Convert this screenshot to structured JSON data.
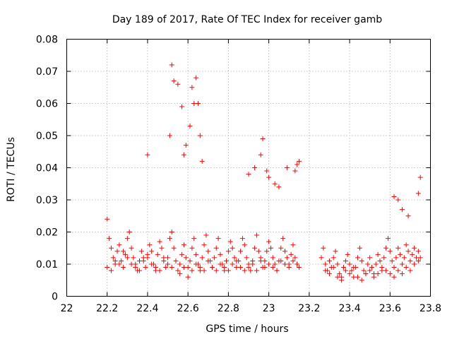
{
  "chart_data": {
    "type": "scatter",
    "title": "Day 189 of 2017, Rate Of TEC Index for receiver gamb",
    "xlabel": "GPS time / hours",
    "ylabel": "ROTI / TECUs",
    "xlim": [
      22,
      23.8
    ],
    "ylim": [
      0,
      0.08
    ],
    "x_ticks": [
      "22",
      "22.2",
      "22.4",
      "22.6",
      "22.8",
      "23",
      "23.2",
      "23.4",
      "23.6",
      "23.8"
    ],
    "y_ticks": [
      "0",
      "0.01",
      "0.02",
      "0.03",
      "0.04",
      "0.05",
      "0.06",
      "0.07",
      "0.08"
    ],
    "grid": true,
    "marker": "+",
    "series": [
      {
        "name": "ROTI",
        "color": "#ff0000",
        "x": [
          22.2,
          22.21,
          22.22,
          22.23,
          22.24,
          22.25,
          22.26,
          22.27,
          22.28,
          22.29,
          22.3,
          22.31,
          22.32,
          22.33,
          22.34,
          22.35,
          22.36,
          22.37,
          22.38,
          22.39,
          22.4,
          22.41,
          22.42,
          22.43,
          22.44,
          22.45,
          22.46,
          22.47,
          22.48,
          22.49,
          22.5,
          22.51,
          22.52,
          22.53,
          22.54,
          22.55,
          22.56,
          22.57,
          22.58,
          22.59,
          22.6,
          22.61,
          22.62,
          22.63,
          22.64,
          22.65,
          22.66,
          22.67,
          22.68,
          22.69,
          22.7,
          22.71,
          22.72,
          22.73,
          22.74,
          22.75,
          22.76,
          22.77,
          22.78,
          22.79,
          22.8,
          22.81,
          22.82,
          22.83,
          22.84,
          22.85,
          22.86,
          22.87,
          22.88,
          22.89,
          22.9,
          22.91,
          22.92,
          22.93,
          22.94,
          22.95,
          22.96,
          22.97,
          22.98,
          22.99,
          23.0,
          23.01,
          23.02,
          23.03,
          23.04,
          23.05,
          23.06,
          23.07,
          23.08,
          23.09,
          23.1,
          23.11,
          23.12,
          23.13,
          23.14,
          23.15,
          23.26,
          23.27,
          23.28,
          23.29,
          23.3,
          23.31,
          23.32,
          23.33,
          23.34,
          23.35,
          23.36,
          23.37,
          23.38,
          23.39,
          23.4,
          23.41,
          23.42,
          23.43,
          23.44,
          23.45,
          23.46,
          23.47,
          23.48,
          23.49,
          23.5,
          23.51,
          23.52,
          23.53,
          23.54,
          23.55,
          23.56,
          23.57,
          23.58,
          23.59,
          23.6,
          23.61,
          23.62,
          23.63,
          23.64,
          23.65,
          23.66,
          23.67,
          23.68,
          23.69,
          23.7,
          23.71,
          23.72,
          23.73,
          23.74,
          23.75,
          22.2,
          22.22,
          22.24,
          22.26,
          22.28,
          22.3,
          22.32,
          22.34,
          22.36,
          22.38,
          22.4,
          22.42,
          22.44,
          22.46,
          22.48,
          22.5,
          22.52,
          22.54,
          22.56,
          22.58,
          22.6,
          22.62,
          22.64,
          22.66,
          22.68,
          22.7,
          22.72,
          22.74,
          22.76,
          22.78,
          22.8,
          22.82,
          22.84,
          22.86,
          22.88,
          22.9,
          22.92,
          22.94,
          22.96,
          22.98,
          23.0,
          23.02,
          23.04,
          23.06,
          23.08,
          23.1,
          23.12,
          23.14,
          23.28,
          23.3,
          23.32,
          23.34,
          23.36,
          23.38,
          23.4,
          23.42,
          23.44,
          23.46,
          23.48,
          23.5,
          23.52,
          23.54,
          23.56,
          23.58,
          23.6,
          23.62,
          23.64,
          23.66,
          23.68,
          23.7,
          23.72,
          23.74,
          22.4,
          22.51,
          22.52,
          22.53,
          22.55,
          22.57,
          22.58,
          22.59,
          22.61,
          22.62,
          22.63,
          22.64,
          22.65,
          22.66,
          22.67,
          22.9,
          22.93,
          22.96,
          22.97,
          22.99,
          23.0,
          23.03,
          23.05,
          23.09,
          23.13,
          23.14,
          23.15,
          23.62,
          23.64,
          23.66,
          23.69,
          23.74,
          23.75
        ],
        "y": [
          0.024,
          0.018,
          0.015,
          0.012,
          0.01,
          0.014,
          0.016,
          0.011,
          0.009,
          0.013,
          0.018,
          0.02,
          0.015,
          0.012,
          0.01,
          0.008,
          0.011,
          0.014,
          0.012,
          0.009,
          0.012,
          0.016,
          0.014,
          0.01,
          0.008,
          0.013,
          0.017,
          0.015,
          0.011,
          0.009,
          0.012,
          0.018,
          0.02,
          0.015,
          0.011,
          0.008,
          0.01,
          0.013,
          0.016,
          0.012,
          0.009,
          0.011,
          0.015,
          0.018,
          0.013,
          0.01,
          0.008,
          0.012,
          0.016,
          0.019,
          0.014,
          0.011,
          0.009,
          0.012,
          0.015,
          0.018,
          0.013,
          0.01,
          0.008,
          0.011,
          0.014,
          0.017,
          0.015,
          0.012,
          0.009,
          0.011,
          0.014,
          0.018,
          0.016,
          0.012,
          0.01,
          0.008,
          0.011,
          0.015,
          0.019,
          0.014,
          0.012,
          0.009,
          0.011,
          0.014,
          0.017,
          0.015,
          0.012,
          0.01,
          0.008,
          0.011,
          0.015,
          0.018,
          0.014,
          0.012,
          0.01,
          0.013,
          0.016,
          0.012,
          0.01,
          0.009,
          0.012,
          0.015,
          0.01,
          0.008,
          0.011,
          0.009,
          0.012,
          0.014,
          0.01,
          0.007,
          0.006,
          0.009,
          0.011,
          0.013,
          0.01,
          0.008,
          0.006,
          0.009,
          0.012,
          0.015,
          0.011,
          0.008,
          0.007,
          0.01,
          0.012,
          0.009,
          0.007,
          0.01,
          0.013,
          0.011,
          0.008,
          0.012,
          0.015,
          0.018,
          0.014,
          0.011,
          0.009,
          0.012,
          0.015,
          0.013,
          0.01,
          0.012,
          0.016,
          0.014,
          0.011,
          0.013,
          0.015,
          0.012,
          0.014,
          0.012,
          0.009,
          0.008,
          0.011,
          0.01,
          0.014,
          0.012,
          0.01,
          0.009,
          0.008,
          0.011,
          0.013,
          0.01,
          0.009,
          0.008,
          0.012,
          0.01,
          0.009,
          0.011,
          0.007,
          0.009,
          0.006,
          0.008,
          0.01,
          0.009,
          0.008,
          0.011,
          0.009,
          0.008,
          0.01,
          0.009,
          0.008,
          0.01,
          0.011,
          0.009,
          0.008,
          0.009,
          0.01,
          0.008,
          0.011,
          0.009,
          0.01,
          0.009,
          0.008,
          0.011,
          0.01,
          0.009,
          0.011,
          0.01,
          0.008,
          0.007,
          0.009,
          0.006,
          0.005,
          0.008,
          0.007,
          0.009,
          0.006,
          0.005,
          0.007,
          0.008,
          0.006,
          0.007,
          0.009,
          0.008,
          0.007,
          0.006,
          0.008,
          0.007,
          0.009,
          0.008,
          0.01,
          0.011,
          0.044,
          0.05,
          0.072,
          0.067,
          0.066,
          0.059,
          0.044,
          0.047,
          0.053,
          0.065,
          0.06,
          0.068,
          0.06,
          0.05,
          0.042,
          0.038,
          0.04,
          0.044,
          0.049,
          0.039,
          0.037,
          0.035,
          0.034,
          0.04,
          0.039,
          0.041,
          0.042,
          0.031,
          0.03,
          0.027,
          0.025,
          0.032,
          0.037
        ]
      }
    ]
  }
}
